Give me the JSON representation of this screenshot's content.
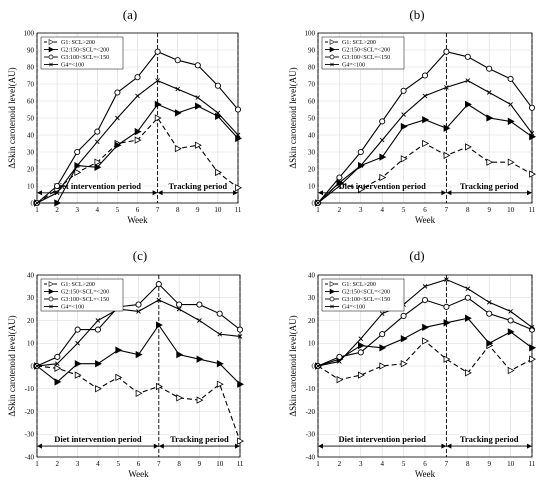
{
  "figure": {
    "ylabel": "ΔSkin carotenoid level(AU)",
    "xlabel": "Week",
    "period_labels": {
      "diet": "Diet intervention period",
      "tracking": "Tracking period"
    }
  },
  "legend": [
    "G1: SCL>200",
    "G2:150<SCL=<200",
    "G3:100<SCL=<150",
    "G4=<100"
  ],
  "chart_data": [
    {
      "type": "line",
      "panel": "(a)",
      "x": [
        1,
        2,
        3,
        4,
        5,
        6,
        7,
        8,
        9,
        10,
        11
      ],
      "ylim": [
        0,
        100
      ],
      "yticks": [
        0,
        10,
        20,
        30,
        40,
        50,
        60,
        70,
        80,
        90,
        100
      ],
      "legend_entries": [
        "G1: SCL>200",
        "G2:150<SCL=<200",
        "G3:100<SCL=<150",
        "G4=<100"
      ],
      "xlabel": "Week",
      "ylabel": "ΔSkin carotenoid level(AU)",
      "series": [
        {
          "name": "G1: SCL>200",
          "values": [
            0,
            8,
            18,
            24,
            35,
            37,
            50,
            32,
            34,
            18,
            9
          ]
        },
        {
          "name": "G2:150<SCL=<200",
          "values": [
            0,
            0,
            22,
            21,
            34,
            42,
            58,
            53,
            57,
            51,
            38
          ]
        },
        {
          "name": "G3:100<SCL=<150",
          "values": [
            0,
            10,
            30,
            42,
            65,
            74,
            89,
            84,
            81,
            69,
            55
          ]
        },
        {
          "name": "G4=<100",
          "values": [
            0,
            6,
            22,
            36,
            50,
            63,
            72,
            67,
            62,
            53,
            40
          ]
        }
      ]
    },
    {
      "type": "line",
      "panel": "(b)",
      "x": [
        1,
        2,
        3,
        4,
        5,
        6,
        7,
        8,
        9,
        10,
        11
      ],
      "ylim": [
        0,
        100
      ],
      "yticks": [
        0,
        10,
        20,
        30,
        40,
        50,
        60,
        70,
        80,
        90,
        100
      ],
      "legend_entries": [
        "G1: SCL>200",
        "G2:150<SCL=<200",
        "G3:100<SCL=<150",
        "G4=<100"
      ],
      "xlabel": "Week",
      "ylabel": "ΔSkin carotenoid level(AU)",
      "series": [
        {
          "name": "G1: SCL>200",
          "values": [
            0,
            12,
            8,
            15,
            26,
            35,
            28,
            33,
            24,
            24,
            17
          ]
        },
        {
          "name": "G2:150<SCL=<200",
          "values": [
            0,
            12,
            22,
            27,
            45,
            49,
            44,
            58,
            50,
            48,
            39
          ]
        },
        {
          "name": "G3:100<SCL=<150",
          "values": [
            0,
            15,
            30,
            48,
            66,
            75,
            89,
            86,
            79,
            73,
            56
          ]
        },
        {
          "name": "G4=<100",
          "values": [
            0,
            10,
            22,
            37,
            52,
            63,
            68,
            72,
            65,
            58,
            41
          ]
        }
      ]
    },
    {
      "type": "line",
      "panel": "(c)",
      "x": [
        1,
        2,
        3,
        4,
        5,
        6,
        7,
        8,
        9,
        10,
        11
      ],
      "ylim": [
        -40,
        40
      ],
      "yticks": [
        -40,
        -30,
        -20,
        -10,
        0,
        10,
        20,
        30,
        40
      ],
      "legend_entries": [
        "G1: SCL>200",
        "G2:150<SCL=<200",
        "G3:100<SCL=<150",
        "G4=<100"
      ],
      "xlabel": "Week",
      "ylabel": "ΔSkin carotenoid level(AU)",
      "series": [
        {
          "name": "G1: SCL>200",
          "values": [
            0,
            -1,
            -4,
            -10,
            -5,
            -12,
            -9,
            -14,
            -15,
            -8,
            -33
          ]
        },
        {
          "name": "G2:150<SCL=<200",
          "values": [
            0,
            -7,
            1,
            1,
            7,
            5,
            18,
            5,
            3,
            1,
            -8
          ]
        },
        {
          "name": "G3:100<SCL=<150",
          "values": [
            0,
            4,
            16,
            16,
            26,
            27,
            36,
            27,
            27,
            23,
            16
          ]
        },
        {
          "name": "G4=<100",
          "values": [
            0,
            1,
            10,
            20,
            25,
            24,
            29,
            25,
            20,
            14,
            13
          ]
        }
      ]
    },
    {
      "type": "line",
      "panel": "(d)",
      "x": [
        1,
        2,
        3,
        4,
        5,
        6,
        7,
        8,
        9,
        10,
        11
      ],
      "ylim": [
        -40,
        40
      ],
      "yticks": [
        -40,
        -30,
        -20,
        -10,
        0,
        10,
        20,
        30,
        40
      ],
      "legend_entries": [
        "G1: SCL>200",
        "G2:150<SCL=<200",
        "G3:100<SCL=<150",
        "G4=<100"
      ],
      "xlabel": "Week",
      "ylabel": "ΔSkin carotenoid level(AU)",
      "series": [
        {
          "name": "G1: SCL>200",
          "values": [
            0,
            -6,
            -4,
            0,
            1,
            11,
            3,
            -3,
            9,
            -2,
            3
          ]
        },
        {
          "name": "G2:150<SCL=<200",
          "values": [
            0,
            3,
            9,
            8,
            12,
            17,
            19,
            21,
            10,
            15,
            8
          ]
        },
        {
          "name": "G3:100<SCL=<150",
          "values": [
            0,
            4,
            6,
            14,
            22,
            29,
            26,
            30,
            23,
            20,
            16
          ]
        },
        {
          "name": "G4=<100",
          "values": [
            0,
            2,
            12,
            23,
            27,
            35,
            38,
            34,
            28,
            24,
            17
          ]
        }
      ]
    }
  ]
}
